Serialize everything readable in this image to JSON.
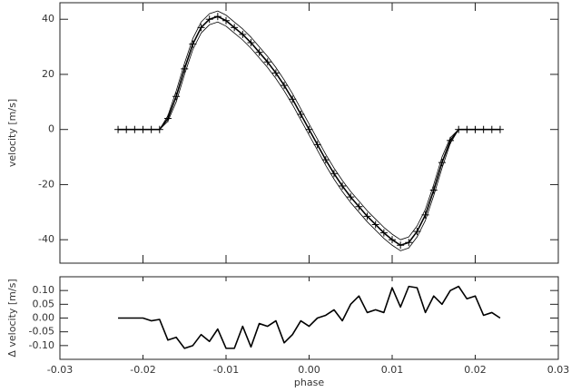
{
  "chart_data": [
    {
      "type": "line",
      "ylabel": "velocity  [m/s]",
      "xlim": [
        -0.03,
        0.03
      ],
      "xticks": [
        -0.03,
        -0.02,
        -0.01,
        0,
        0.01,
        0.02,
        0.03
      ],
      "ylim": [
        -48.5,
        46
      ],
      "yticks": [
        -40,
        -20,
        0,
        20,
        40
      ],
      "x": [
        -0.023,
        -0.022,
        -0.021,
        -0.02,
        -0.019,
        -0.018,
        -0.017,
        -0.016,
        -0.015,
        -0.014,
        -0.013,
        -0.012,
        -0.011,
        -0.01,
        -0.009,
        -0.008,
        -0.007,
        -0.006,
        -0.005,
        -0.004,
        -0.003,
        -0.002,
        -0.001,
        0,
        0.001,
        0.002,
        0.003,
        0.004,
        0.005,
        0.006,
        0.007,
        0.008,
        0.009,
        0.01,
        0.011,
        0.012,
        0.013,
        0.014,
        0.015,
        0.016,
        0.017,
        0.018,
        0.019,
        0.02,
        0.021,
        0.022,
        0.023
      ],
      "series": [
        {
          "color": "#000000",
          "linewidth": 1.6,
          "marker": "plus",
          "values": [
            0,
            0,
            0,
            0,
            0,
            0,
            4,
            12,
            22,
            31,
            37,
            40,
            41,
            39.5,
            37,
            34.5,
            31.5,
            28,
            24.5,
            20.5,
            16,
            11,
            5.5,
            0,
            -5.5,
            -11,
            -16,
            -20.5,
            -24.5,
            -28,
            -31.5,
            -34.5,
            -37.5,
            -40,
            -42,
            -41,
            -37,
            -31,
            -22,
            -12,
            -4,
            0,
            0,
            0,
            0,
            0,
            0
          ]
        },
        {
          "color": "#000000",
          "linewidth": 0.8,
          "values": [
            0,
            0,
            0,
            0,
            0,
            0,
            5,
            14,
            24,
            33,
            39,
            42,
            43,
            41.5,
            39,
            36.5,
            33.5,
            30,
            26.5,
            22.5,
            18,
            13,
            7.5,
            2,
            -3.5,
            -9,
            -14,
            -18.5,
            -22.5,
            -26,
            -29.5,
            -32.5,
            -35.5,
            -38,
            -40,
            -39,
            -35,
            -29,
            -20,
            -10,
            -3,
            0,
            0,
            0,
            0,
            0,
            0
          ]
        },
        {
          "color": "#000000",
          "linewidth": 0.8,
          "values": [
            0,
            0,
            0,
            0,
            0,
            0,
            3,
            10,
            20,
            29,
            35,
            38,
            39,
            37.5,
            35,
            32.5,
            29.5,
            26,
            22.5,
            18.5,
            14,
            9,
            3.5,
            -2,
            -7.5,
            -13,
            -18,
            -22.5,
            -26.5,
            -30,
            -33.5,
            -36.5,
            -39.5,
            -42,
            -44,
            -43,
            -39,
            -33,
            -24,
            -14,
            -5,
            0,
            0,
            0,
            0,
            0,
            0
          ]
        }
      ]
    },
    {
      "type": "line",
      "ylabel": "Δ velocity  [m/s]",
      "xlabel": "phase",
      "xlim": [
        -0.03,
        0.03
      ],
      "xticks": [
        -0.03,
        -0.02,
        -0.01,
        {
          "value": 0,
          "label": "0.00"
        },
        0.01,
        0.02,
        0.03
      ],
      "ylim": [
        -0.15,
        0.15
      ],
      "yticks": [
        {
          "value": -0.1,
          "label": "-0.10"
        },
        {
          "value": -0.05,
          "label": "-0.05"
        },
        {
          "value": 0,
          "label": "0.00"
        },
        {
          "value": 0.05,
          "label": "0.05"
        },
        {
          "value": 0.1,
          "label": "0.10"
        }
      ],
      "x": [
        -0.023,
        -0.022,
        -0.021,
        -0.02,
        -0.019,
        -0.018,
        -0.017,
        -0.016,
        -0.015,
        -0.014,
        -0.013,
        -0.012,
        -0.011,
        -0.01,
        -0.009,
        -0.008,
        -0.007,
        -0.006,
        -0.005,
        -0.004,
        -0.003,
        -0.002,
        -0.001,
        0,
        0.001,
        0.002,
        0.003,
        0.004,
        0.005,
        0.006,
        0.007,
        0.008,
        0.009,
        0.01,
        0.011,
        0.012,
        0.013,
        0.014,
        0.015,
        0.016,
        0.017,
        0.018,
        0.019,
        0.02,
        0.021,
        0.022,
        0.023
      ],
      "series": [
        {
          "color": "#000000",
          "linewidth": 1.6,
          "values": [
            0,
            0,
            0,
            0,
            -0.01,
            -0.005,
            -0.08,
            -0.07,
            -0.11,
            -0.1,
            -0.06,
            -0.085,
            -0.04,
            -0.11,
            -0.11,
            -0.03,
            -0.105,
            -0.02,
            -0.03,
            -0.01,
            -0.09,
            -0.06,
            -0.01,
            -0.03,
            0,
            0.01,
            0.03,
            -0.01,
            0.05,
            0.08,
            0.02,
            0.03,
            0.02,
            0.11,
            0.04,
            0.115,
            0.11,
            0.02,
            0.08,
            0.05,
            0.1,
            0.115,
            0.07,
            0.08,
            0.01,
            0.02,
            0
          ]
        }
      ]
    }
  ]
}
